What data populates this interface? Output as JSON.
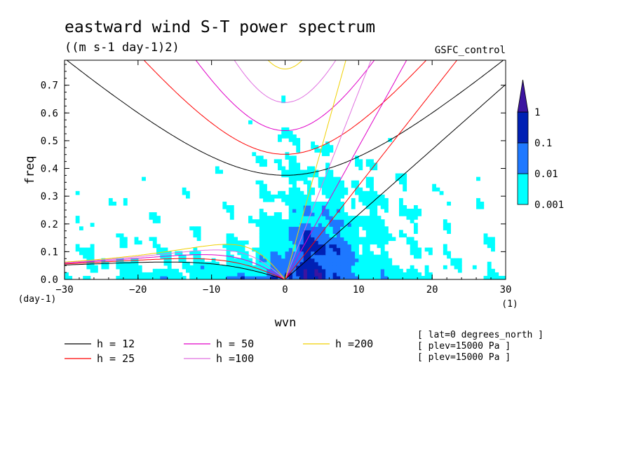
{
  "chart_data": {
    "type": "heatmap",
    "title": "eastward wind S-T power spectrum",
    "subtitle": "((m s-1 day-1)2)",
    "run_label": "GSFC_control",
    "xlabel": "wvn",
    "ylabel": "freq",
    "x_unit": "(1)",
    "y_unit": "(day-1)",
    "xlim": [
      -30,
      30
    ],
    "ylim": [
      0,
      0.79
    ],
    "xticks": [
      -30,
      -20,
      -10,
      0,
      10,
      20,
      30
    ],
    "xtick_labels": [
      "−30",
      "−20",
      "−10",
      "0",
      "10",
      "20",
      "30"
    ],
    "yticks": [
      0,
      0.1,
      0.2,
      0.3,
      0.4,
      0.5,
      0.6,
      0.7
    ],
    "ytick_labels": [
      "0.0",
      "0.1",
      "0.2",
      "0.3",
      "0.4",
      "0.5",
      "0.6",
      "0.7"
    ],
    "colorbar": {
      "levels": [
        0.001,
        0.01,
        0.1,
        1
      ],
      "labels": [
        "0.001",
        "0.01",
        "0.1",
        "1"
      ],
      "colors": [
        "#00ffff",
        "#1e78ff",
        "#0020b4",
        "#3c14a0"
      ]
    },
    "dispersion_curves": [
      {
        "name": "h = 12",
        "h": 12,
        "color": "#000000"
      },
      {
        "name": "h = 25",
        "h": 25,
        "color": "#ff0000"
      },
      {
        "name": "h = 50",
        "h": 50,
        "color": "#e000c8"
      },
      {
        "name": "h =100",
        "h": 100,
        "color": "#e070e0"
      },
      {
        "name": "h =200",
        "h": 200,
        "color": "#f0d000"
      }
    ],
    "annotations": [
      "[ lat=0 degrees_north ]",
      "[ plev=15000 Pa ]",
      "[ plev=15000 Pa ]"
    ],
    "power_regions": [
      {
        "level": 0.001,
        "note": "scattered patches across most of the domain"
      },
      {
        "level": 0.01,
        "note": "broad region around wvn 0-10, freq 0-0.3, and along low-frequency band"
      },
      {
        "level": 0.1,
        "note": "core near wvn 0-8, freq 0-0.25"
      },
      {
        "level": 1,
        "note": "small spots near wvn 2-6, freq 0.05-0.2"
      }
    ]
  }
}
